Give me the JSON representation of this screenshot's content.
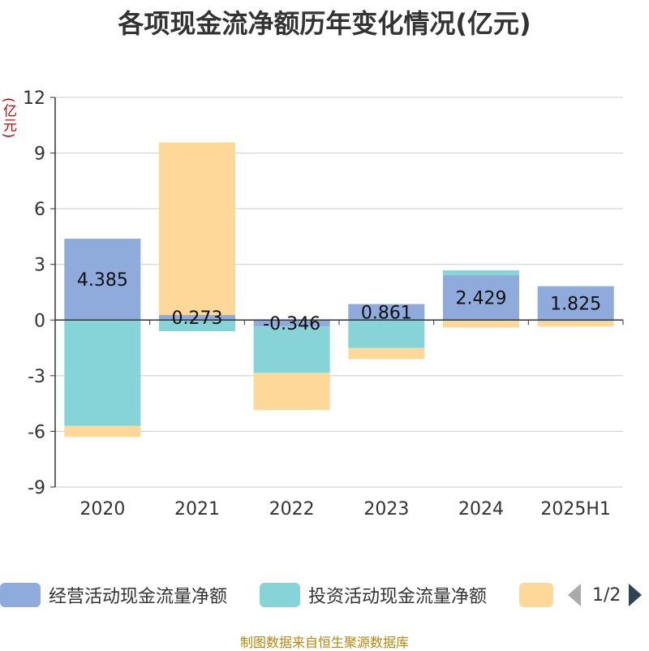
{
  "title": "各项现金流净额历年变化情况(亿元)",
  "y_unit": "(亿元)",
  "source": "制图数据来自恒生聚源数据库",
  "legend": {
    "pager_text": "1/2",
    "prev_icon": "triangle-left-icon",
    "next_icon": "triangle-right-icon"
  },
  "colors": {
    "operating": "#8eabdb",
    "investing": "#86d4d8",
    "financing": "#fdd898",
    "axis": "#333333",
    "grid": "#cccccc",
    "y_unit": "#cc0000",
    "source": "#b8860b"
  },
  "chart_data": {
    "type": "bar",
    "stacked": true,
    "title": "各项现金流净额历年变化情况(亿元)",
    "ylabel": "(亿元)",
    "categories": [
      "2020",
      "2021",
      "2022",
      "2023",
      "2024",
      "2025H1"
    ],
    "ylim": [
      -9,
      12
    ],
    "yticks": [
      12,
      9,
      6,
      3,
      0,
      -3,
      -6,
      -9
    ],
    "grid": true,
    "legend_position": "bottom",
    "series": [
      {
        "name": "经营活动现金流量净额",
        "values": [
          4.385,
          0.273,
          -0.346,
          0.861,
          2.429,
          1.825
        ],
        "show_labels": true
      },
      {
        "name": "投资活动现金流量净额",
        "values": [
          -5.7,
          -0.6,
          -2.5,
          -1.5,
          0.25,
          -0.05
        ]
      },
      {
        "name": "",
        "values": [
          -0.6,
          9.3,
          -2.0,
          -0.6,
          -0.4,
          -0.3
        ]
      }
    ]
  }
}
